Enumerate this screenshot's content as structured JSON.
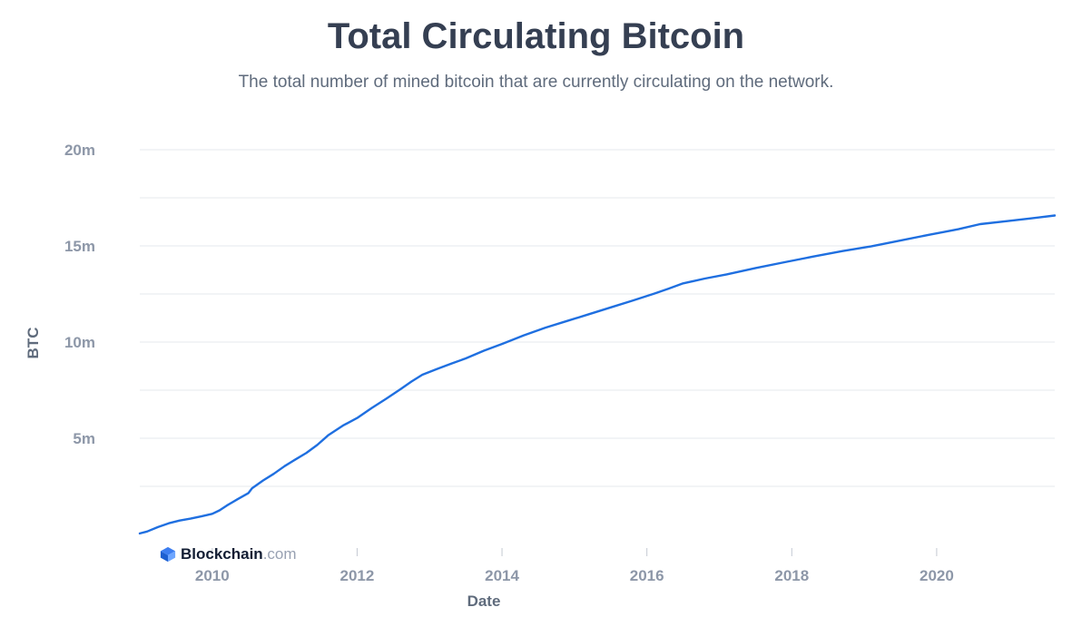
{
  "header": {
    "title": "Total Circulating Bitcoin",
    "subtitle": "The total number of mined bitcoin that are currently circulating on the network."
  },
  "branding": {
    "name": "Blockchain",
    "suffix": ".com",
    "icon": "blockchain-cube-icon"
  },
  "colors": {
    "line": "#1f6fe0",
    "grid": "#e6e8ec",
    "tick": "#8d97a8",
    "title": "#353f52"
  },
  "chart_data": {
    "type": "line",
    "title": "Total Circulating Bitcoin",
    "xlabel": "Date",
    "ylabel": "BTC",
    "xlim": [
      2009.0,
      2021.63
    ],
    "ylim": [
      0,
      20000000
    ],
    "x_ticks": [
      2010,
      2012,
      2014,
      2016,
      2018,
      2020
    ],
    "x_tick_labels": [
      "2010",
      "2012",
      "2014",
      "2016",
      "2018",
      "2020"
    ],
    "y_ticks": [
      5000000,
      10000000,
      15000000,
      20000000
    ],
    "y_tick_labels": [
      "5m",
      "10m",
      "15m",
      "20m"
    ],
    "grid": true,
    "series": [
      {
        "x": [
          2009.0,
          2009.1,
          2009.25,
          2009.4,
          2009.55,
          2009.7,
          2009.85,
          2010.0,
          2010.1,
          2010.2,
          2010.35,
          2010.5,
          2010.55,
          2010.7,
          2010.85,
          2011.0,
          2011.15,
          2011.3,
          2011.45,
          2011.6,
          2011.8,
          2012.0,
          2012.2,
          2012.4,
          2012.6,
          2012.75,
          2012.9,
          2013.1,
          2013.3,
          2013.5,
          2013.75,
          2014.0,
          2014.3,
          2014.6,
          2014.9,
          2015.2,
          2015.5,
          2015.8,
          2016.1,
          2016.3,
          2016.5,
          2016.8,
          2017.1,
          2017.5,
          2017.9,
          2018.3,
          2018.7,
          2019.1,
          2019.5,
          2019.9,
          2020.3,
          2020.6,
          2021.0,
          2021.3,
          2021.63
        ],
        "y": [
          50000,
          150000,
          380000,
          580000,
          720000,
          820000,
          940000,
          1070000,
          1250000,
          1500000,
          1830000,
          2150000,
          2400000,
          2800000,
          3150000,
          3550000,
          3900000,
          4240000,
          4650000,
          5150000,
          5650000,
          6050000,
          6570000,
          7050000,
          7550000,
          7950000,
          8300000,
          8600000,
          8880000,
          9150000,
          9550000,
          9900000,
          10350000,
          10750000,
          11100000,
          11450000,
          11800000,
          12150000,
          12520000,
          12780000,
          13050000,
          13300000,
          13520000,
          13850000,
          14150000,
          14450000,
          14730000,
          14980000,
          15280000,
          15580000,
          15870000,
          16130000,
          16300000,
          16430000,
          16580000
        ]
      }
    ]
  }
}
